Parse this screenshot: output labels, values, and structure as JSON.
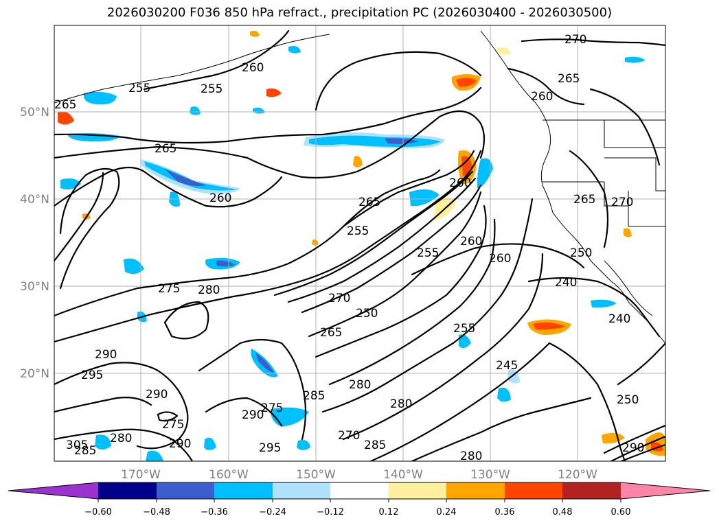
{
  "title": "2026030200 F036 850 hPa refract., precipitation PC (2026030400 - 2026030500)",
  "map": {
    "lat_labels": [
      "50°N",
      "40°N",
      "30°N",
      "20°N"
    ],
    "lon_labels": [
      "170°W",
      "160°W",
      "150°W",
      "140°W",
      "130°W",
      "120°W"
    ],
    "contour_labels": [
      {
        "text": "270"
      },
      {
        "text": "255"
      },
      {
        "text": "260"
      },
      {
        "text": "255"
      },
      {
        "text": "265"
      },
      {
        "text": "265"
      },
      {
        "text": "260"
      },
      {
        "text": "265"
      },
      {
        "text": "260"
      },
      {
        "text": "255"
      },
      {
        "text": "265"
      },
      {
        "text": "260"
      },
      {
        "text": "260"
      },
      {
        "text": "255"
      },
      {
        "text": "260"
      },
      {
        "text": "265"
      },
      {
        "text": "270"
      },
      {
        "text": "250"
      },
      {
        "text": "240"
      },
      {
        "text": "275"
      },
      {
        "text": "280"
      },
      {
        "text": "270"
      },
      {
        "text": "250"
      },
      {
        "text": "265"
      },
      {
        "text": "255"
      },
      {
        "text": "240"
      },
      {
        "text": "290"
      },
      {
        "text": "295"
      },
      {
        "text": "245"
      },
      {
        "text": "285"
      },
      {
        "text": "280"
      },
      {
        "text": "290"
      },
      {
        "text": "275"
      },
      {
        "text": "280"
      },
      {
        "text": "290"
      },
      {
        "text": "275"
      },
      {
        "text": "270"
      },
      {
        "text": "285"
      },
      {
        "text": "290"
      },
      {
        "text": "295"
      },
      {
        "text": "280"
      },
      {
        "text": "250"
      },
      {
        "text": "290"
      },
      {
        "text": "305"
      },
      {
        "text": "280"
      },
      {
        "text": "285"
      }
    ]
  },
  "colorbar": {
    "colors": [
      "#9a32cd",
      "#00008b",
      "#3a5fcd",
      "#00bfff",
      "#b0e2ff",
      "#ffffff",
      "#fff09e",
      "#ffa500",
      "#ff4500",
      "#b22222",
      "#ff85a8"
    ],
    "tick_labels": [
      "−0.60",
      "−0.48",
      "−0.36",
      "−0.24",
      "−0.12",
      "0.12",
      "0.24",
      "0.36",
      "0.48",
      "0.60"
    ]
  }
}
